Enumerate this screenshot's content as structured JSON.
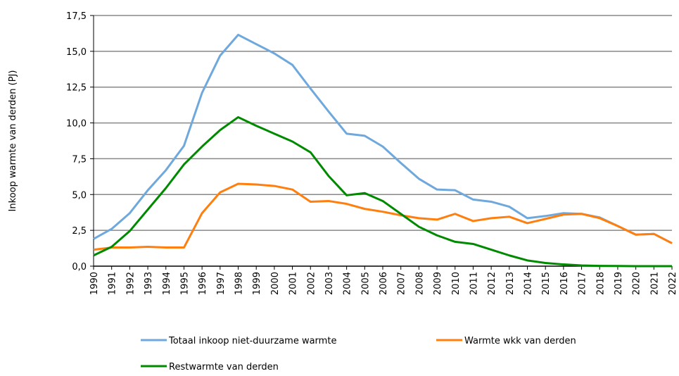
{
  "chart_data": {
    "type": "line",
    "y_label": "Inkoop warmte van derden (PJ)",
    "categories": [
      "1990",
      "1991",
      "1992",
      "1993",
      "1994",
      "1995",
      "1996",
      "1997",
      "1998",
      "1999",
      "2000",
      "2001",
      "2002",
      "2003",
      "2004",
      "2005",
      "2006",
      "2007",
      "2008",
      "2009",
      "2010",
      "2011",
      "2012",
      "2013",
      "2014",
      "2015",
      "2016",
      "2017",
      "2018",
      "2019",
      "2020",
      "2021",
      "2022"
    ],
    "series": [
      {
        "name": "Totaal inkoop niet-duurzame warmte",
        "color": "#6fa8dc",
        "values": [
          1.9,
          2.6,
          3.7,
          5.3,
          6.7,
          8.4,
          12.1,
          14.7,
          16.15,
          15.5,
          14.85,
          14.05,
          12.4,
          10.8,
          9.25,
          9.1,
          8.35,
          7.2,
          6.1,
          5.35,
          5.3,
          4.65,
          4.5,
          4.15,
          3.35,
          3.5,
          3.7,
          3.65,
          3.4,
          2.8,
          2.2,
          2.25,
          1.6
        ]
      },
      {
        "name": "Warmte wkk van derden",
        "color": "#ff7f0e",
        "values": [
          1.15,
          1.3,
          1.3,
          1.35,
          1.3,
          1.3,
          3.7,
          5.15,
          5.75,
          5.7,
          5.6,
          5.35,
          4.5,
          4.55,
          4.35,
          4.0,
          3.8,
          3.55,
          3.35,
          3.25,
          3.65,
          3.15,
          3.35,
          3.45,
          3.0,
          3.3,
          3.6,
          3.65,
          3.35,
          2.8,
          2.2,
          2.25,
          1.6
        ]
      },
      {
        "name": "Restwarmte van derden",
        "color": "#008a00",
        "values": [
          0.75,
          1.35,
          2.45,
          3.95,
          5.45,
          7.1,
          8.35,
          9.5,
          10.4,
          9.8,
          9.25,
          8.7,
          7.95,
          6.3,
          4.95,
          5.1,
          4.55,
          3.65,
          2.75,
          2.15,
          1.7,
          1.55,
          1.15,
          0.75,
          0.4,
          0.22,
          0.12,
          0.05,
          0.02,
          0.01,
          0,
          0,
          0
        ]
      }
    ],
    "ylim": [
      0,
      17.5
    ],
    "yticks": [
      {
        "value": 0,
        "label": "0,0"
      },
      {
        "value": 2.5,
        "label": "2,5"
      },
      {
        "value": 5,
        "label": "5,0"
      },
      {
        "value": 7.5,
        "label": "7,5"
      },
      {
        "value": 10,
        "label": "10,0"
      },
      {
        "value": 12.5,
        "label": "12,5"
      },
      {
        "value": 15,
        "label": "15,0"
      },
      {
        "value": 17.5,
        "label": "17,5"
      }
    ],
    "grid": true
  }
}
